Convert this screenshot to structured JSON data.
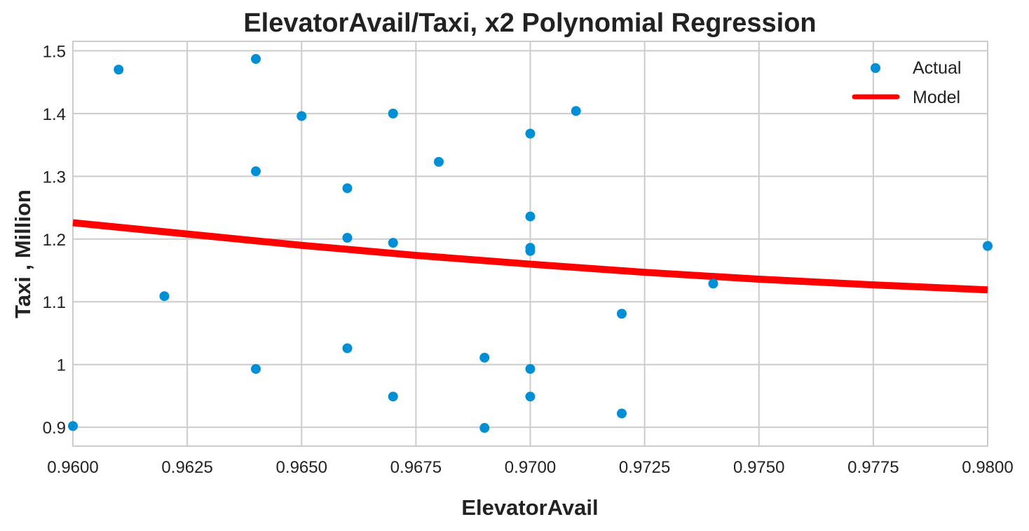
{
  "chart_data": {
    "type": "scatter",
    "title": "ElevatorAvail/Taxi, x2 Polynomial Regression",
    "xlabel": "ElevatorAvail",
    "ylabel": "Taxi , Million",
    "xlim": [
      0.96,
      0.98
    ],
    "ylim": [
      0.87,
      1.515
    ],
    "x_ticks": [
      0.96,
      0.9625,
      0.965,
      0.9675,
      0.97,
      0.9725,
      0.975,
      0.9775,
      0.98
    ],
    "x_tick_labels": [
      "0.9600",
      "0.9625",
      "0.9650",
      "0.9675",
      "0.9700",
      "0.9725",
      "0.9750",
      "0.9775",
      "0.9800"
    ],
    "y_ticks": [
      0.9,
      1.0,
      1.1,
      1.2,
      1.3,
      1.4,
      1.5
    ],
    "y_tick_labels": [
      "0.9",
      "1",
      "1.1",
      "1.2",
      "1.3",
      "1.4",
      "1.5"
    ],
    "grid": true,
    "legend_position": "top-right",
    "series": [
      {
        "name": "Actual",
        "kind": "scatter",
        "color": "#008fd5",
        "points": [
          {
            "x": 0.96,
            "y": 0.902
          },
          {
            "x": 0.961,
            "y": 1.47
          },
          {
            "x": 0.962,
            "y": 1.109
          },
          {
            "x": 0.964,
            "y": 1.487
          },
          {
            "x": 0.964,
            "y": 1.308
          },
          {
            "x": 0.964,
            "y": 0.993
          },
          {
            "x": 0.965,
            "y": 1.396
          },
          {
            "x": 0.966,
            "y": 1.281
          },
          {
            "x": 0.966,
            "y": 1.202
          },
          {
            "x": 0.966,
            "y": 1.026
          },
          {
            "x": 0.967,
            "y": 1.4
          },
          {
            "x": 0.967,
            "y": 1.194
          },
          {
            "x": 0.967,
            "y": 0.949
          },
          {
            "x": 0.968,
            "y": 1.323
          },
          {
            "x": 0.969,
            "y": 1.011
          },
          {
            "x": 0.969,
            "y": 0.899
          },
          {
            "x": 0.97,
            "y": 1.368
          },
          {
            "x": 0.97,
            "y": 1.236
          },
          {
            "x": 0.97,
            "y": 1.186
          },
          {
            "x": 0.97,
            "y": 1.181
          },
          {
            "x": 0.97,
            "y": 0.993
          },
          {
            "x": 0.97,
            "y": 0.949
          },
          {
            "x": 0.971,
            "y": 1.404
          },
          {
            "x": 0.972,
            "y": 1.081
          },
          {
            "x": 0.972,
            "y": 0.922
          },
          {
            "x": 0.974,
            "y": 1.129
          },
          {
            "x": 0.98,
            "y": 1.189
          }
        ]
      },
      {
        "name": "Model",
        "kind": "line",
        "color": "#ff0000",
        "points": [
          {
            "x": 0.96,
            "y": 1.226
          },
          {
            "x": 0.9625,
            "y": 1.208
          },
          {
            "x": 0.965,
            "y": 1.19
          },
          {
            "x": 0.9675,
            "y": 1.174
          },
          {
            "x": 0.97,
            "y": 1.16
          },
          {
            "x": 0.9725,
            "y": 1.147
          },
          {
            "x": 0.975,
            "y": 1.136
          },
          {
            "x": 0.9775,
            "y": 1.127
          },
          {
            "x": 0.98,
            "y": 1.119
          }
        ]
      }
    ]
  }
}
